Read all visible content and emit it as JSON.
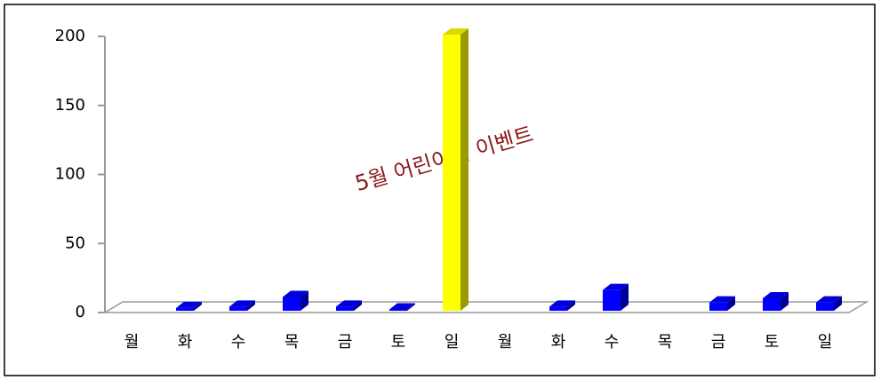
{
  "chart_data": {
    "type": "bar3d",
    "categories": [
      "월",
      "화",
      "수",
      "목",
      "금",
      "토",
      "일",
      "월",
      "화",
      "수",
      "목",
      "금",
      "토",
      "일"
    ],
    "values": [
      0,
      2,
      3,
      10,
      3,
      1,
      200,
      0,
      3,
      15,
      0,
      6,
      9,
      6
    ],
    "colors": [
      "#0000ff",
      "#0000ff",
      "#0000ff",
      "#0000ff",
      "#0000ff",
      "#0000ff",
      "#ffff00",
      "#0000ff",
      "#0000ff",
      "#0000ff",
      "#0000ff",
      "#0000ff",
      "#0000ff",
      "#0000ff"
    ],
    "annotation": "5월 어린이날 이벤트",
    "ylim": [
      0,
      200
    ],
    "yticks": [
      0,
      50,
      100,
      150,
      200
    ],
    "grid": false
  }
}
